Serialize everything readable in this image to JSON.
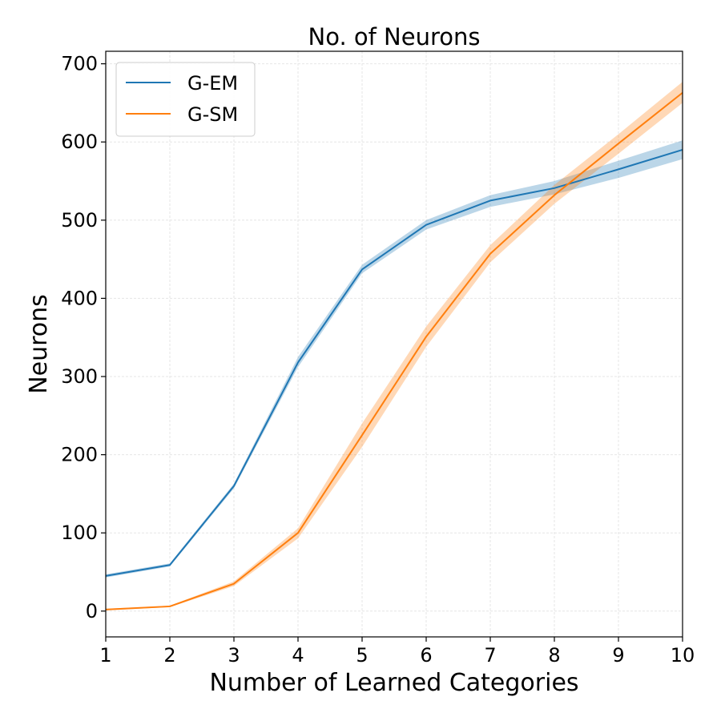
{
  "chart_data": {
    "type": "line",
    "title": "No. of Neurons",
    "xlabel": "Number of Learned Categories",
    "ylabel": "Neurons",
    "x": [
      1,
      2,
      3,
      4,
      5,
      6,
      7,
      8,
      9,
      10
    ],
    "xlim": [
      1,
      10
    ],
    "ylim": [
      -33,
      716
    ],
    "xticks": [
      1,
      2,
      3,
      4,
      5,
      6,
      7,
      8,
      9,
      10
    ],
    "yticks": [
      0,
      100,
      200,
      300,
      400,
      500,
      600,
      700
    ],
    "grid": true,
    "legend_position": "top-left",
    "series": [
      {
        "name": "G-EM",
        "color": "#1f77b4",
        "values": [
          45,
          59,
          160,
          318,
          437,
          494,
          525,
          541,
          565,
          590
        ],
        "lower": [
          43,
          57,
          157,
          312,
          432,
          488,
          517,
          533,
          554,
          578
        ],
        "upper": [
          47,
          61,
          163,
          325,
          443,
          500,
          532,
          550,
          576,
          602
        ]
      },
      {
        "name": "G-SM",
        "color": "#ff7f0e",
        "values": [
          2,
          6,
          35,
          100,
          225,
          351,
          457,
          532,
          598,
          663
        ],
        "lower": [
          1,
          5,
          32,
          93,
          210,
          338,
          446,
          521,
          585,
          650
        ],
        "upper": [
          3,
          7,
          38,
          106,
          240,
          364,
          468,
          545,
          610,
          677
        ]
      }
    ]
  }
}
